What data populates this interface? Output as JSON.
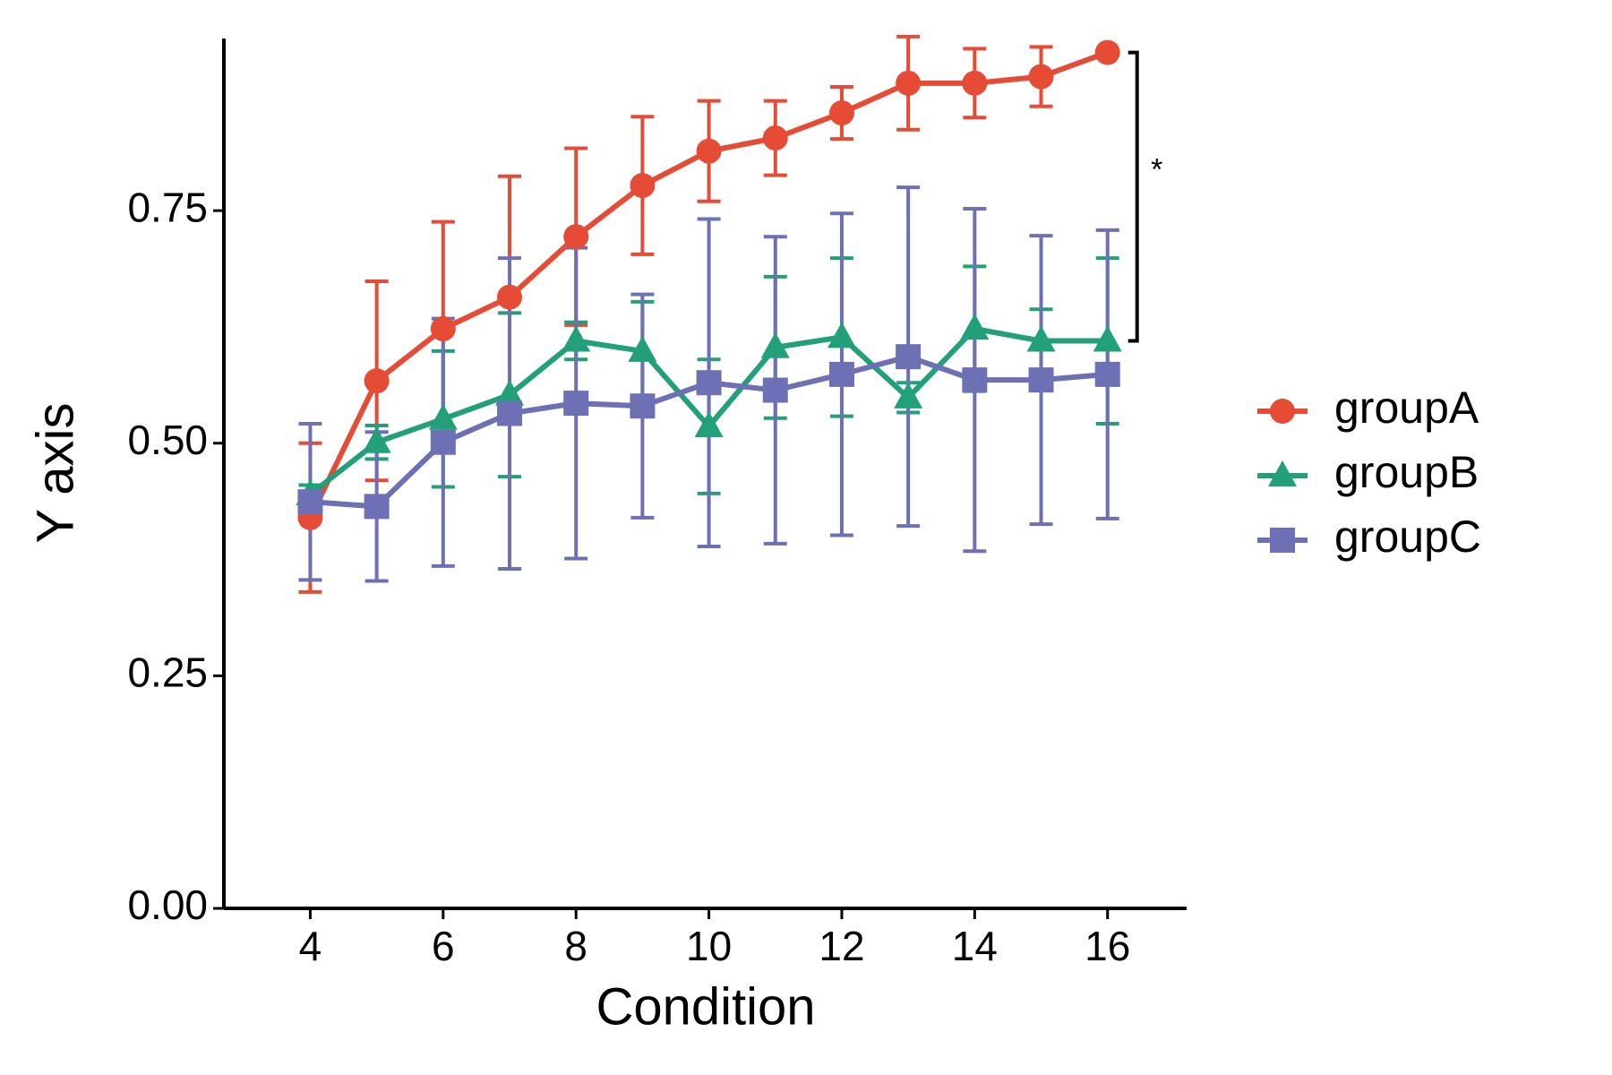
{
  "chart_data": {
    "type": "line",
    "x_label": "Condition",
    "y_label": "Y axis",
    "x": [
      4,
      5,
      6,
      7,
      8,
      9,
      10,
      11,
      12,
      13,
      14,
      15,
      16
    ],
    "series": [
      {
        "name": "groupA",
        "color": "#e64b35",
        "marker": "circle",
        "values": [
          0.42,
          0.567,
          0.623,
          0.657,
          0.722,
          0.777,
          0.814,
          0.828,
          0.855,
          0.887,
          0.887,
          0.894,
          0.92
        ],
        "errors": [
          0.08,
          0.107,
          0.115,
          0.13,
          0.095,
          0.074,
          0.054,
          0.04,
          0.028,
          0.05,
          0.037,
          0.032,
          0.0
        ]
      },
      {
        "name": "groupB",
        "color": "#21a07a",
        "marker": "triangle",
        "values": [
          0.445,
          0.501,
          0.526,
          0.552,
          0.61,
          0.599,
          0.518,
          0.603,
          0.614,
          0.549,
          0.623,
          0.61,
          0.61
        ],
        "errors": [
          0.01,
          0.018,
          0.073,
          0.088,
          0.02,
          0.053,
          0.072,
          0.076,
          0.085,
          0.016,
          0.067,
          0.034,
          0.089
        ]
      },
      {
        "name": "groupC",
        "color": "#6e70b5",
        "marker": "square",
        "values": [
          0.437,
          0.432,
          0.501,
          0.532,
          0.543,
          0.54,
          0.565,
          0.557,
          0.574,
          0.593,
          0.568,
          0.568,
          0.574
        ],
        "errors": [
          0.084,
          0.08,
          0.133,
          0.167,
          0.167,
          0.12,
          0.176,
          0.165,
          0.173,
          0.182,
          0.184,
          0.155,
          0.155
        ]
      }
    ],
    "xlim": [
      2.7,
      17.19
    ],
    "xticks": [
      4,
      6,
      8,
      10,
      12,
      14,
      16
    ],
    "ylim": [
      0,
      0.935
    ],
    "yticks": [
      {
        "value": 0,
        "label": "0.00"
      },
      {
        "value": 0.25,
        "label": "0.25"
      },
      {
        "value": 0.5,
        "label": "0.50"
      },
      {
        "value": 0.75,
        "label": "0.75"
      }
    ],
    "grid": false,
    "legend": "right",
    "annotation": "*"
  }
}
